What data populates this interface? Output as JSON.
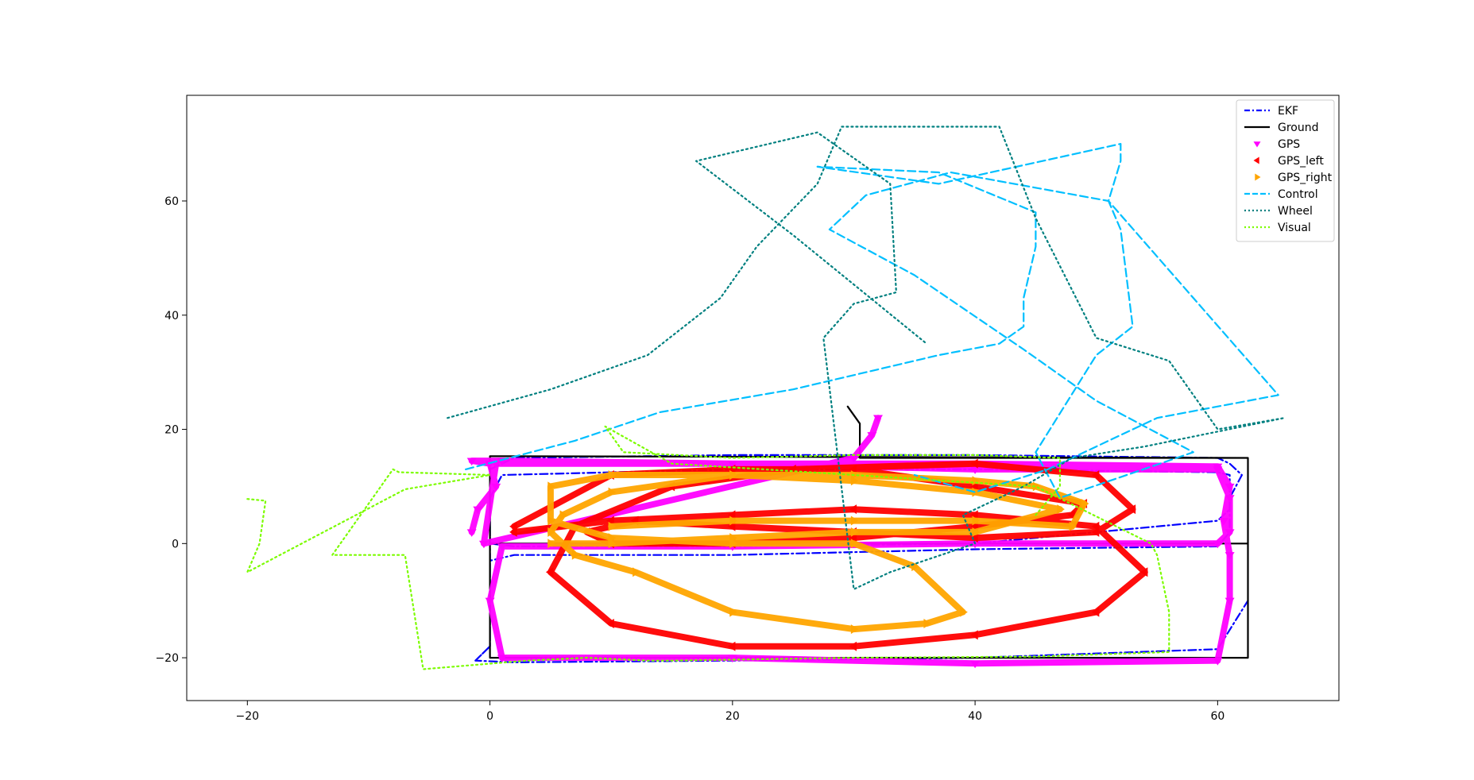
{
  "chart_data": {
    "type": "line",
    "title": "",
    "xlabel": "",
    "ylabel": "",
    "xlim": [
      -25,
      70
    ],
    "ylim": [
      -27.5,
      78.5
    ],
    "x_ticks": [
      -20,
      0,
      20,
      40,
      60
    ],
    "y_ticks": [
      -20,
      0,
      20,
      40,
      60
    ],
    "x_tick_labels": [
      "−20",
      "0",
      "20",
      "40",
      "60"
    ],
    "y_tick_labels": [
      "−20",
      "0",
      "20",
      "40",
      "60"
    ],
    "grid": false,
    "legend_position": "top-right",
    "series": [
      {
        "name": "EKF",
        "color": "#0000ff",
        "style": "dashdot",
        "marker": "none",
        "x": [
          -1.2,
          0,
          0,
          0,
          2,
          20,
          40,
          60,
          61,
          61,
          62,
          61,
          60,
          40,
          20,
          2,
          0,
          0,
          0,
          2,
          20,
          40,
          60,
          61,
          61,
          61,
          60,
          40,
          20,
          1,
          0,
          0,
          0,
          0,
          -1.2,
          2,
          20,
          40,
          60,
          62.5
        ],
        "y": [
          -20.5,
          -18,
          -10,
          -3,
          -2,
          -2,
          -1,
          -0.5,
          2,
          8,
          12,
          14,
          15,
          15.5,
          15.5,
          15,
          13,
          5,
          0,
          -0.5,
          -0.5,
          0,
          4,
          6,
          10,
          12,
          12.5,
          13,
          13,
          12,
          8,
          2,
          -10,
          -18,
          -20.5,
          -20.8,
          -20.5,
          -20,
          -18.5,
          -10
        ]
      },
      {
        "name": "Ground",
        "color": "#000000",
        "style": "solid",
        "marker": "none",
        "x": [
          0,
          0,
          62.5,
          62.5,
          0,
          0,
          62.5,
          62.5,
          30.5,
          30.5,
          29.5
        ],
        "y": [
          -20,
          15.3,
          15,
          -20,
          -20,
          0,
          0,
          15,
          15,
          21,
          24
        ],
        "y_note": "closed rectangles with a short spur near x=30"
      },
      {
        "name": "GPS",
        "color": "#ff00ff",
        "style": "none",
        "marker": "tri_down",
        "x": [
          -1.5,
          -1,
          0.5,
          0,
          -1.5,
          1,
          20,
          40,
          60,
          61,
          60.5,
          61,
          61,
          60,
          40,
          20,
          1,
          0,
          1,
          20,
          40,
          60,
          61,
          61,
          60,
          40,
          20,
          0.5,
          -0.5,
          30,
          31.5,
          32
        ],
        "y": [
          2,
          6,
          10,
          14,
          14.5,
          14.5,
          14,
          14,
          13.5,
          10,
          4,
          -2,
          -10,
          -20.5,
          -21,
          -20,
          -20,
          -10,
          -0.5,
          -0.5,
          0,
          0,
          2,
          8,
          13,
          13,
          14,
          14,
          0,
          15,
          19,
          22
        ]
      },
      {
        "name": "GPS_left",
        "color": "#ff0000",
        "style": "none",
        "marker": "tri_left",
        "x": [
          2,
          10,
          20,
          30,
          40,
          50,
          54,
          50,
          40,
          30,
          20,
          10,
          5,
          7,
          15,
          25,
          40,
          50,
          53,
          50,
          40,
          30,
          20,
          12,
          8,
          10,
          20,
          30,
          40,
          48,
          49,
          40,
          30,
          20,
          10,
          2
        ],
        "y": [
          2,
          4,
          5,
          6,
          5,
          3,
          -5,
          -12,
          -16,
          -18,
          -18,
          -14,
          -5,
          3,
          10,
          13,
          14,
          12,
          6,
          2,
          1,
          2,
          3,
          4,
          2,
          0,
          0,
          1,
          3,
          5,
          7,
          10,
          13,
          13,
          12,
          3
        ]
      },
      {
        "name": "GPS_right",
        "color": "#ffa500",
        "style": "none",
        "marker": "tri_right",
        "x": [
          10,
          20,
          30,
          40,
          48,
          49,
          45,
          40,
          30,
          20,
          10,
          5,
          5,
          10,
          20,
          30,
          35,
          39,
          36,
          30,
          20,
          12,
          7,
          5,
          6,
          10,
          20,
          30,
          40,
          47,
          40,
          30,
          20,
          10,
          5
        ],
        "y": [
          3,
          4,
          4,
          4,
          3,
          7,
          10,
          11,
          12,
          12,
          12,
          10,
          4,
          1,
          0,
          0,
          -4,
          -12,
          -14,
          -15,
          -12,
          -5,
          -2,
          2,
          5,
          9,
          12,
          11,
          9,
          6,
          2,
          2,
          1,
          0,
          0
        ]
      },
      {
        "name": "Control",
        "color": "#00bfff",
        "style": "dashed",
        "marker": "none",
        "x": [
          -2,
          7,
          14,
          25,
          37,
          42,
          44,
          44,
          45,
          45,
          37,
          27,
          37,
          52,
          52,
          51,
          52,
          53,
          50,
          45,
          47,
          58,
          50,
          44,
          35,
          28,
          31,
          38,
          51,
          65,
          55,
          46,
          40,
          35
        ],
        "y": [
          13,
          18,
          23,
          27,
          33,
          35,
          38,
          43,
          52,
          58,
          65,
          66,
          63,
          70,
          67,
          60,
          55,
          38,
          33,
          16,
          8,
          16,
          25,
          34,
          47,
          55,
          61,
          65,
          60,
          26,
          22,
          13,
          9,
          12
        ],
        "y_note": "approximate waypoints of the dashed control trajectory"
      },
      {
        "name": "Wheel",
        "color": "#008080",
        "style": "dotted",
        "marker": "none",
        "x": [
          -3.5,
          5,
          13,
          19,
          22,
          27,
          29,
          34,
          38,
          42,
          45,
          50,
          56,
          60,
          65.5,
          54,
          48,
          44,
          40,
          39,
          40,
          33,
          30,
          27.5,
          30,
          33.5,
          33,
          27,
          17,
          25,
          36
        ],
        "y": [
          22,
          27,
          33,
          43,
          52,
          63,
          73,
          73,
          73,
          73,
          57,
          36,
          32,
          20,
          22,
          17,
          15,
          10,
          6,
          5,
          0,
          -5,
          -8,
          36,
          42,
          44,
          63,
          72,
          67,
          54,
          35
        ]
      },
      {
        "name": "Visual",
        "color": "#7cfc00",
        "style": "dotted",
        "marker": "none",
        "x": [
          -20,
          -18.5,
          -19,
          -20,
          -7,
          0,
          -7.5,
          -8,
          -13,
          -7,
          -5.5,
          3,
          8,
          13,
          15,
          30,
          45,
          56,
          56,
          55,
          54.5,
          45,
          30,
          15,
          9.5,
          11,
          20,
          30,
          40,
          47,
          47,
          45
        ],
        "y": [
          7.8,
          7.5,
          0,
          -5,
          9.5,
          12,
          12.5,
          13,
          -2,
          -2,
          -22,
          -20.5,
          -20,
          -20.5,
          -20.5,
          -20,
          -19.8,
          -19,
          -12,
          -2,
          0,
          10,
          12,
          14,
          20.5,
          16,
          15,
          15.5,
          15.5,
          15,
          10,
          5
        ]
      }
    ]
  }
}
